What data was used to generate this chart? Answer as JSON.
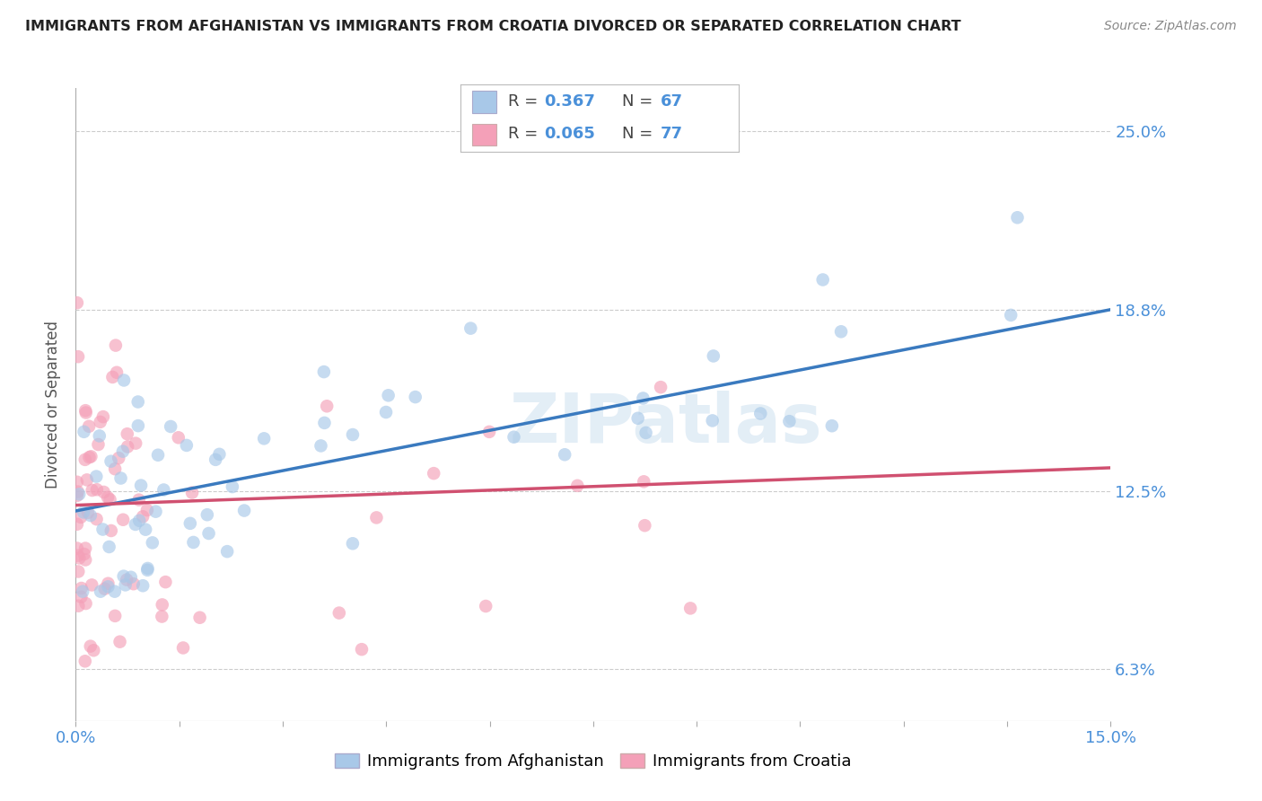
{
  "title": "IMMIGRANTS FROM AFGHANISTAN VS IMMIGRANTS FROM CROATIA DIVORCED OR SEPARATED CORRELATION CHART",
  "source": "Source: ZipAtlas.com",
  "xlabel_legend1": "Immigrants from Afghanistan",
  "xlabel_legend2": "Immigrants from Croatia",
  "ylabel": "Divorced or Separated",
  "xlim": [
    0.0,
    15.0
  ],
  "ylim": [
    4.5,
    26.5
  ],
  "yticks": [
    6.3,
    12.5,
    18.8,
    25.0
  ],
  "ytick_labels": [
    "6.3%",
    "12.5%",
    "18.8%",
    "25.0%"
  ],
  "color_afghanistan": "#a8c8e8",
  "color_croatia": "#f4a0b8",
  "line_color_afghanistan": "#3a7abf",
  "line_color_croatia": "#d05070",
  "R_afghanistan": 0.367,
  "N_afghanistan": 67,
  "R_croatia": 0.065,
  "N_croatia": 77,
  "background_color": "#ffffff",
  "grid_color": "#cccccc",
  "afg_line_x0": 0.0,
  "afg_line_y0": 11.8,
  "afg_line_x1": 15.0,
  "afg_line_y1": 18.8,
  "cro_line_x0": 0.0,
  "cro_line_y0": 12.0,
  "cro_line_x1": 15.0,
  "cro_line_y1": 13.3
}
